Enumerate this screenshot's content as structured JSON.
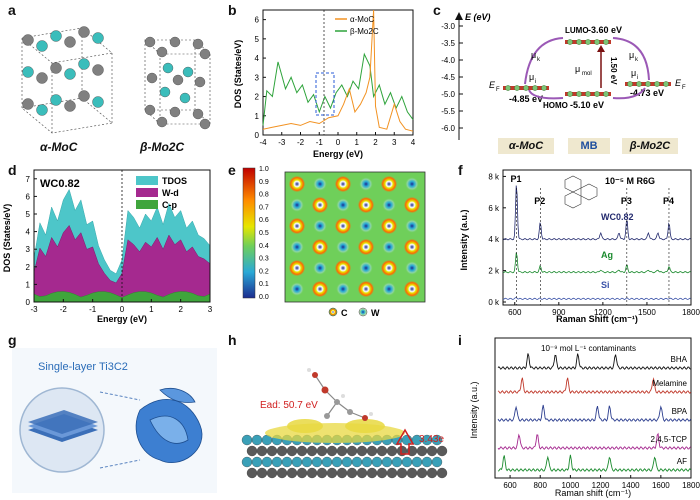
{
  "panels": {
    "a": {
      "label": "a",
      "left": "α-MoC",
      "right": "β-Mo2C"
    },
    "b": {
      "label": "b",
      "legend": [
        "α-MoC",
        "β-Mo2C"
      ],
      "ylabel": "DOS (States/eV)",
      "xlabel": "Energy (eV)",
      "xticks": [
        "-4",
        "-3",
        "-2",
        "-1",
        "0",
        "1",
        "2",
        "3",
        "4"
      ],
      "yticks": [
        "0",
        "1",
        "2",
        "3",
        "4",
        "5",
        "6"
      ]
    },
    "c": {
      "label": "c",
      "ylabel": "E (eV)",
      "yticks": [
        "-3.0",
        "-3.5",
        "-4.0",
        "-4.5",
        "-5.0",
        "-5.5",
        "-6.0"
      ],
      "lumo": "LUMO",
      "homo": "HOMO",
      "lumo_val": "-3.60 eV",
      "homo_val": "-5.10 eV",
      "gap": "1.50 eV",
      "moc_ef": "-4.85 eV",
      "mo2c_ef": "-4.73 eV",
      "ef": "E",
      "ef_sub": "F",
      "mu_k": "μ",
      "mu_i": "μ",
      "mu_mol": "μ",
      "boxes": [
        "α-MoC",
        "MB",
        "β-Mo2C"
      ]
    },
    "d": {
      "label": "d",
      "title": "WC0.82",
      "legend": [
        "TDOS",
        "W-d",
        "C-p"
      ],
      "ylabel": "DOS (States/eV)",
      "xlabel": "Energy (eV)",
      "xticks": [
        "-3",
        "-2",
        "-1",
        "0",
        "1",
        "2",
        "3"
      ],
      "yticks": [
        "0",
        "1",
        "2",
        "3",
        "4",
        "5",
        "6",
        "7"
      ]
    },
    "e": {
      "label": "e",
      "cbar": [
        "1.0",
        "0.9",
        "0.8",
        "0.7",
        "0.6",
        "0.5",
        "0.4",
        "0.3",
        "0.2",
        "0.1",
        "0.0"
      ],
      "legend": [
        "C",
        "W"
      ]
    },
    "f": {
      "label": "f",
      "note": "10⁻⁵ M R6G",
      "peaks": [
        "P1",
        "P2",
        "P3",
        "P4"
      ],
      "series": [
        "WC0.82",
        "Ag",
        "Si"
      ],
      "ylabel": "Intensity (a.u.)",
      "xlabel": "Raman Shift (cm⁻¹)",
      "xticks": [
        "600",
        "900",
        "1200",
        "1500",
        "1800"
      ],
      "yticks": [
        "0 k",
        "2 k",
        "4 k",
        "6 k",
        "8 k"
      ]
    },
    "g": {
      "label": "g",
      "title": "Single-layer Ti3C2"
    },
    "h": {
      "label": "h",
      "ead": "Ead: 50.7 eV",
      "charge": "3.43e"
    },
    "i": {
      "label": "i",
      "note": "10⁻⁹ mol L⁻¹ contaminants",
      "series": [
        "BHA",
        "Melamine",
        "BPA",
        "2,4,5-TCP",
        "AF"
      ],
      "ylabel": "Intensity (a.u.)",
      "xlabel": "Raman shift (cm⁻¹)",
      "xticks": [
        "600",
        "800",
        "1000",
        "1200",
        "1400",
        "1600",
        "1800"
      ]
    }
  },
  "colors": {
    "moc": "#f29222",
    "mo2c": "#2ea33b",
    "tdos": "#4dc6c9",
    "wd": "#a5298f",
    "cp": "#3fa53c",
    "wc": "#232a6e",
    "ag": "#1a8a2d",
    "si": "#3a52a8",
    "box": "#efe8cf",
    "arrow": "#9b59b6"
  }
}
